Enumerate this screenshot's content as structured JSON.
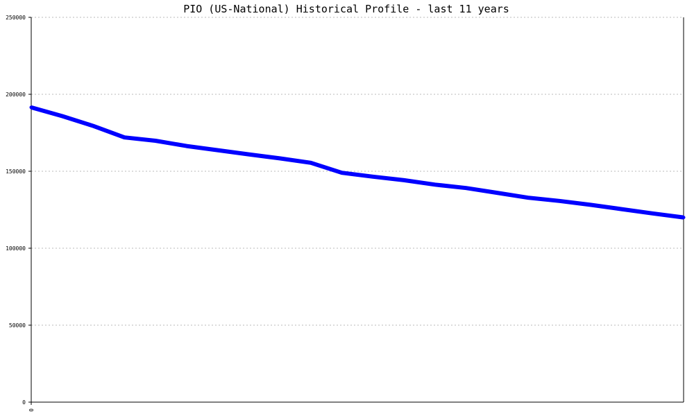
{
  "chart_data": {
    "type": "line",
    "title": "PIO (US-National) Historical Profile - last 11 years",
    "xlabel": "",
    "ylabel": "",
    "ylim": [
      0,
      250000
    ],
    "yticks": [
      "0",
      "50000",
      "100000",
      "150000",
      "200000",
      "250000"
    ],
    "xtick_labels": [
      "0"
    ],
    "grid": true,
    "line_color": "#0000ff",
    "series": [
      {
        "values": [
          191500,
          185800,
          179400,
          172000,
          169800,
          166400,
          163700,
          161000,
          158400,
          155500,
          149000,
          146500,
          144200,
          141300,
          139100,
          136000,
          132800,
          130700,
          128200,
          125400,
          122600,
          120000
        ]
      }
    ]
  }
}
